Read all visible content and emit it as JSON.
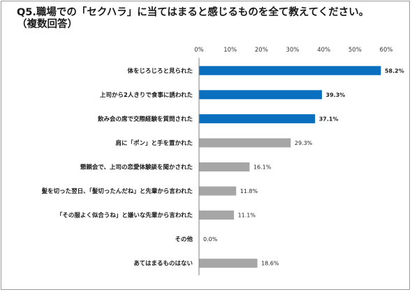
{
  "title_line1": "Q5.職場での「セクハラ」に当てはまると感じるものを全て教えてください。",
  "title_line2": "（複数回答）",
  "chart_data": {
    "type": "bar",
    "orientation": "horizontal",
    "xlim": [
      0,
      60
    ],
    "xticks": [
      "0%",
      "10%",
      "20%",
      "30%",
      "40%",
      "50%",
      "60%"
    ],
    "categories": [
      "体をじろじろと見られた",
      "上司から2人きりで食事に誘われた",
      "飲み会の席で交際経験を質問された",
      "肩に「ポン」と手を置かれた",
      "懇親会で、上司の恋愛体験談を聞かされた",
      "髪を切った翌日、「髪切ったんだね」と先輩から言われた",
      "「その服よく似合うね」と嫌いな先輩から言われた",
      "その他",
      "あてはまるものはない"
    ],
    "values": [
      58.2,
      39.3,
      37.1,
      29.3,
      16.1,
      11.8,
      11.1,
      0.0,
      18.6
    ],
    "value_labels": [
      "58.2%",
      "39.3%",
      "37.1%",
      "29.3%",
      "16.1%",
      "11.8%",
      "11.1%",
      "0.0%",
      "18.6%"
    ],
    "highlighted": [
      true,
      true,
      true,
      false,
      false,
      false,
      false,
      false,
      false
    ],
    "colors": {
      "highlight": "#0b6fbf",
      "normal": "#a6a6a6",
      "axis": "#7f7f7f"
    },
    "grid": false,
    "legend": "none"
  }
}
